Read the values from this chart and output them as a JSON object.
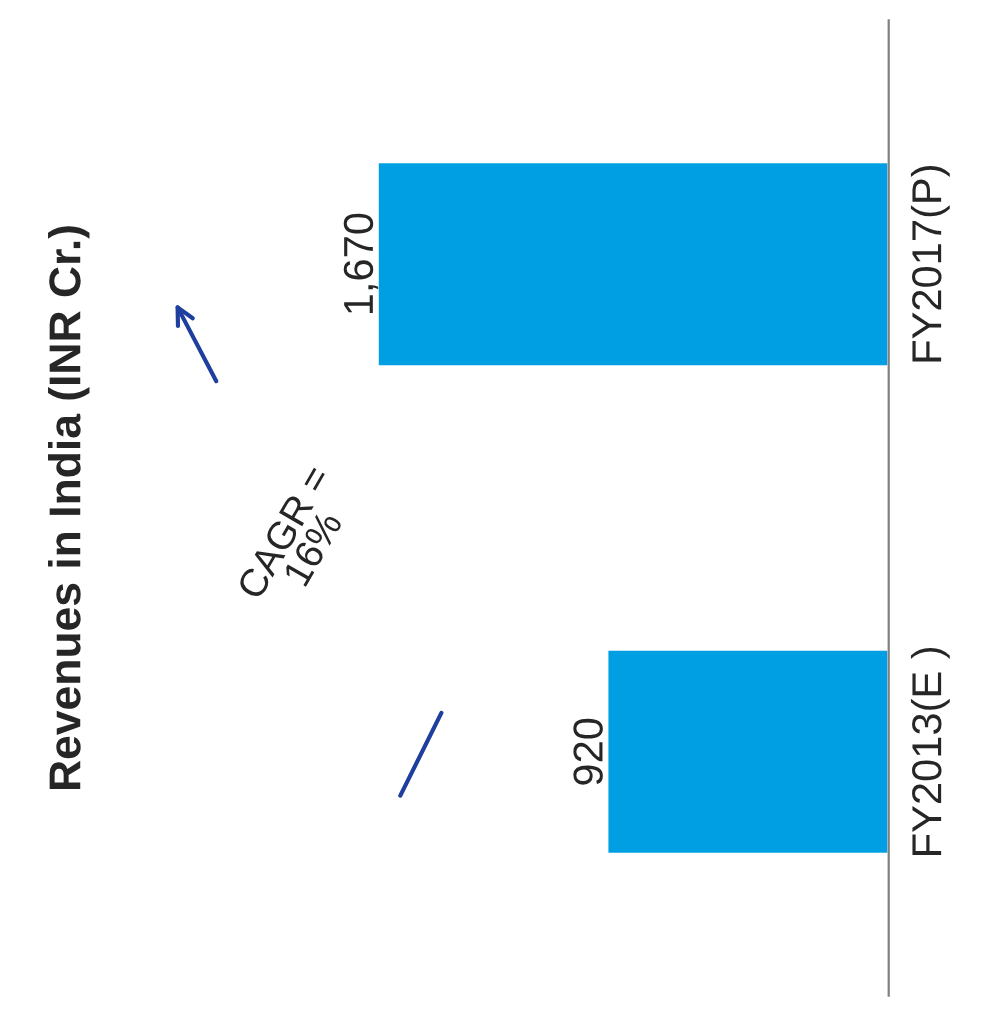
{
  "chart_data": {
    "type": "bar",
    "orientation": "horizontal",
    "title": "Revenues in India (INR Cr.)",
    "categories": [
      "FY2017(P)",
      "FY2013(E )"
    ],
    "values": [
      1670,
      920
    ],
    "color": "#009fe3",
    "value_labels": [
      "1,670",
      "920"
    ],
    "annotations": [
      "CAGR =\n16%"
    ],
    "grid": false,
    "legend": false
  }
}
